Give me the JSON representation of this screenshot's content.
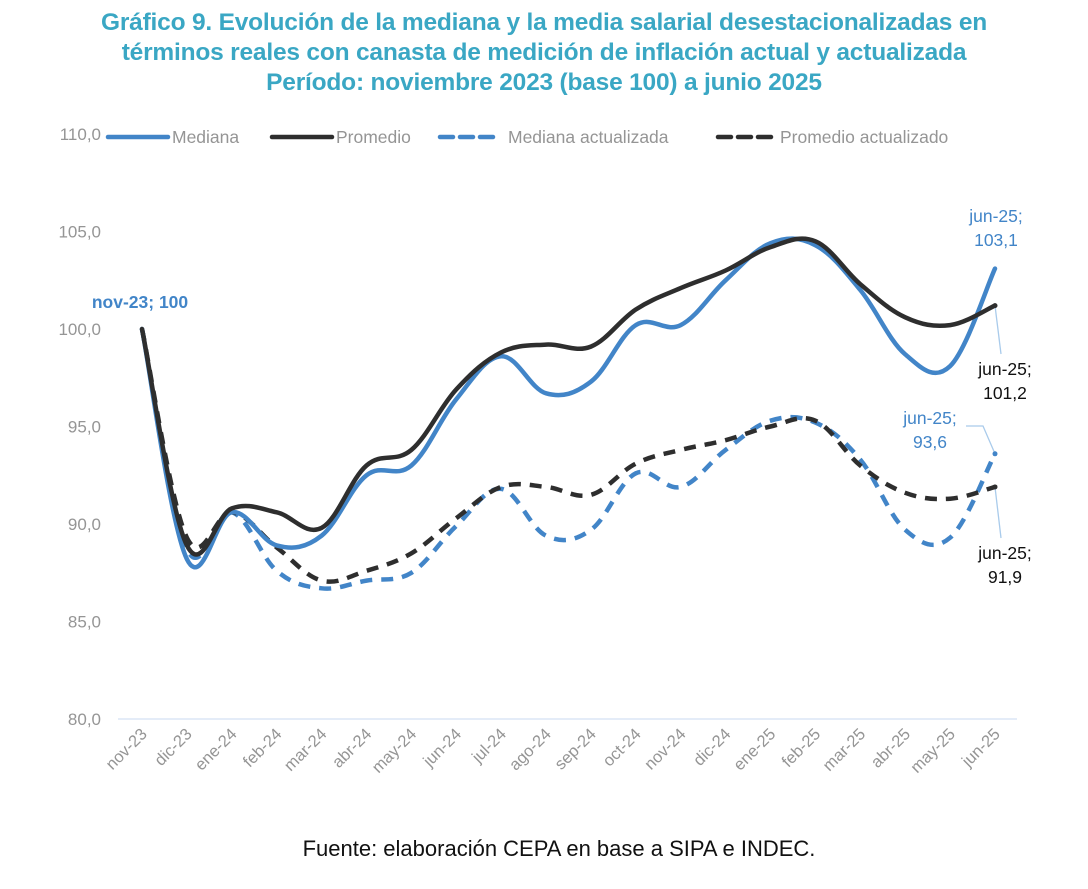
{
  "title_lines": [
    "Gráfico 9. Evolución de la mediana y la media salarial desestacionalizadas en",
    "términos reales con canasta de medición de inflación actual y actualizada",
    "Período: noviembre 2023 (base 100) a junio 2025"
  ],
  "source": "Fuente: elaboración CEPA en base a SIPA e INDEC.",
  "colors": {
    "title": "#3AA7C4",
    "blue": "#4285C8",
    "black": "#2E2E2E",
    "axis_text": "#959595",
    "leader_line": "#A9CBEB",
    "gridline": "#DCE6F5"
  },
  "chart_data": {
    "type": "line",
    "title": "Gráfico 9. Evolución de la mediana y la media salarial desestacionalizadas en términos reales con canasta de medición de inflación actual y actualizada. Período: noviembre 2023 (base 100) a junio 2025",
    "xlabel": "",
    "ylabel": "",
    "ylim": [
      80,
      110
    ],
    "yticks": [
      80,
      85,
      90,
      95,
      100,
      105,
      110
    ],
    "ytick_labels": [
      "80,0",
      "85,0",
      "90,0",
      "95,0",
      "100,0",
      "105,0",
      "110,0"
    ],
    "grid": false,
    "legend_position": "top",
    "categories": [
      "nov-23",
      "dic-23",
      "ene-24",
      "feb-24",
      "mar-24",
      "abr-24",
      "may-24",
      "jun-24",
      "jul-24",
      "ago-24",
      "sep-24",
      "oct-24",
      "nov-24",
      "dic-24",
      "ene-25",
      "feb-25",
      "mar-25",
      "abr-25",
      "may-25",
      "jun-25"
    ],
    "series": [
      {
        "name": "Mediana",
        "style": "solid",
        "color": "#4285C8",
        "values": [
          100,
          88.2,
          90.6,
          88.9,
          89.4,
          92.5,
          93.0,
          96.4,
          98.6,
          96.7,
          97.3,
          100.2,
          100.2,
          102.5,
          104.4,
          104.3,
          102.0,
          98.7,
          98.1,
          103.1
        ]
      },
      {
        "name": "Promedio",
        "style": "solid",
        "color": "#2E2E2E",
        "values": [
          100,
          88.9,
          90.8,
          90.6,
          89.8,
          93.0,
          93.8,
          96.9,
          98.8,
          99.2,
          99.1,
          101.0,
          102.1,
          103.0,
          104.2,
          104.5,
          102.3,
          100.6,
          100.2,
          101.2
        ]
      },
      {
        "name": "Mediana actualizada",
        "style": "dashed",
        "color": "#4285C8",
        "values": [
          100,
          88.7,
          90.6,
          87.6,
          86.7,
          87.1,
          87.5,
          89.9,
          91.8,
          89.4,
          89.7,
          92.6,
          91.9,
          93.8,
          95.3,
          95.2,
          93.3,
          89.7,
          89.3,
          93.6
        ]
      },
      {
        "name": "Promedio actualizado",
        "style": "dashed",
        "color": "#2E2E2E",
        "values": [
          100,
          89.3,
          90.6,
          88.8,
          87.1,
          87.6,
          88.5,
          90.3,
          91.9,
          91.9,
          91.5,
          93.1,
          93.8,
          94.3,
          95.0,
          95.3,
          93.0,
          91.6,
          91.3,
          91.9
        ]
      }
    ],
    "annotations": [
      {
        "id": "start",
        "lines": [
          "nov-23; 100"
        ],
        "series": 0,
        "point": 0,
        "bold": true,
        "color": "#4285C8"
      },
      {
        "id": "mediana-end",
        "lines": [
          "jun-25;",
          "103,1"
        ],
        "series": 0,
        "point": 19,
        "bold": false,
        "color": "#4285C8"
      },
      {
        "id": "promedio-end",
        "lines": [
          "jun-25;",
          "101,2"
        ],
        "series": 1,
        "point": 19,
        "bold": false,
        "color": "#111111"
      },
      {
        "id": "mediana-act-end",
        "lines": [
          "jun-25;",
          "93,6"
        ],
        "series": 2,
        "point": 19,
        "bold": false,
        "color": "#4285C8"
      },
      {
        "id": "promedio-act-end",
        "lines": [
          "jun-25;",
          "91,9"
        ],
        "series": 3,
        "point": 19,
        "bold": false,
        "color": "#111111"
      }
    ]
  }
}
